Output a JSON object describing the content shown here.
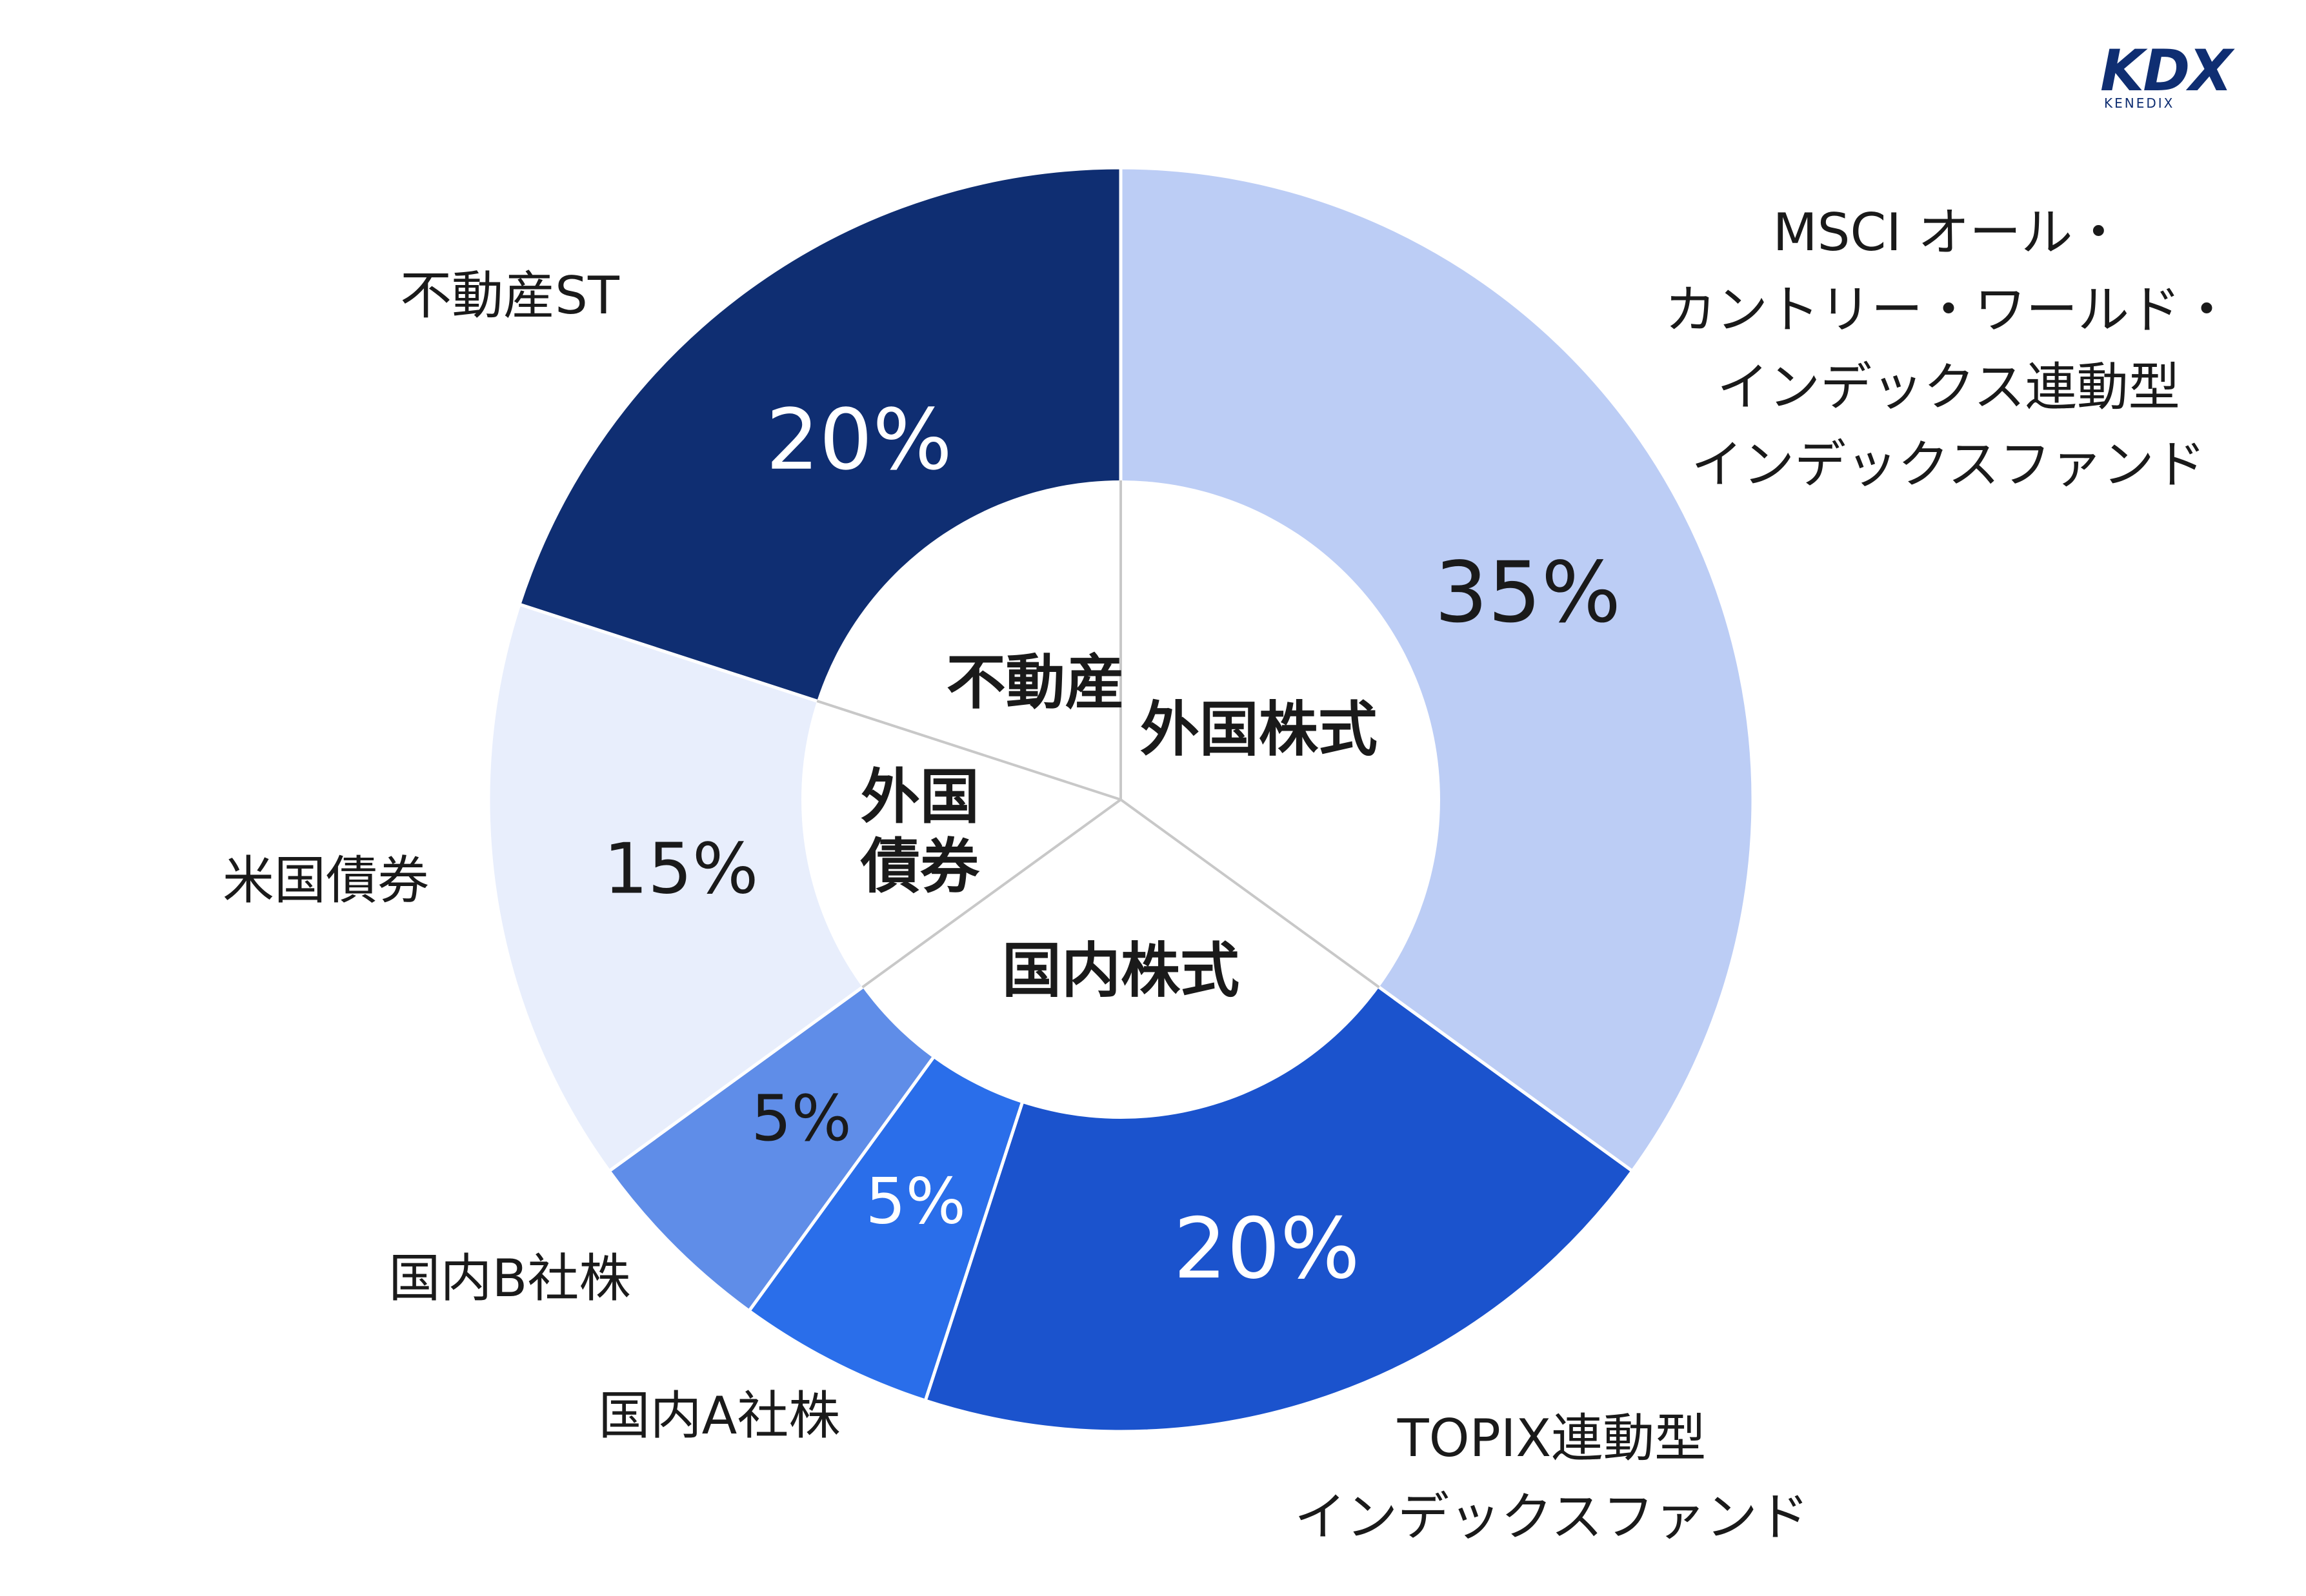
{
  "logo": {
    "mark": "KDX",
    "sub": "KENEDIX"
  },
  "chart_data": {
    "type": "pie",
    "subtype": "nested-donut",
    "outer_ring": [
      {
        "label": "MSCI オール・\nカントリー・ワールド・\nインデックス連動型\nインデックスファンド",
        "value": 35,
        "value_label": "35%",
        "color": "#bccdf5",
        "text_color": "#1a1a1a"
      },
      {
        "label": "TOPIX連動型\nインデックスファンド",
        "value": 20,
        "value_label": "20%",
        "color": "#1b53cd",
        "text_color": "#ffffff"
      },
      {
        "label": "国内A社株",
        "value": 5,
        "value_label": "5%",
        "color": "#2a6eea",
        "text_color": "#ffffff"
      },
      {
        "label": "国内B社株",
        "value": 5,
        "value_label": "5%",
        "color": "#5f8de8",
        "text_color": "#1a1a1a"
      },
      {
        "label": "米国債券",
        "value": 15,
        "value_label": "15%",
        "color": "#e8eefc",
        "text_color": "#1a1a1a"
      },
      {
        "label": "不動産ST",
        "value": 20,
        "value_label": "20%",
        "color": "#0f2e72",
        "text_color": "#ffffff"
      }
    ],
    "inner_ring": [
      {
        "label": "外国株式",
        "value": 35
      },
      {
        "label": "国内株式",
        "value": 30
      },
      {
        "label": "外国\n債券",
        "value": 15
      },
      {
        "label": "不動産",
        "value": 20
      }
    ],
    "inner_color": "#ffffff",
    "divider_color": "#c8c8c8",
    "legend": "none"
  }
}
